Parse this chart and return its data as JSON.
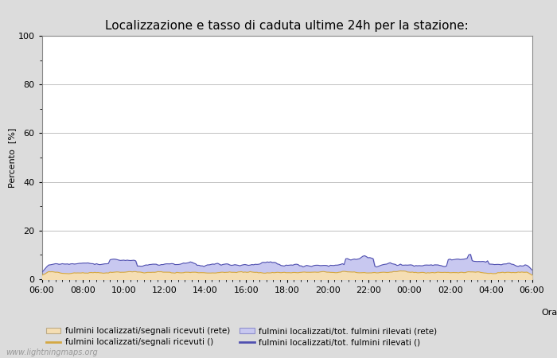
{
  "title": "Localizzazione e tasso di caduta ultime 24h per la stazione:",
  "ylabel": "Percento  [%]",
  "xlabel": "Orario",
  "ylim": [
    0,
    100
  ],
  "yticks": [
    0,
    20,
    40,
    60,
    80,
    100
  ],
  "yticks_minor": [
    10,
    30,
    50,
    70,
    90
  ],
  "x_labels": [
    "06:00",
    "08:00",
    "10:00",
    "12:00",
    "14:00",
    "16:00",
    "18:00",
    "20:00",
    "22:00",
    "00:00",
    "02:00",
    "04:00",
    "06:00"
  ],
  "area1_color": "#f5deb3",
  "area2_color": "#c8c8f0",
  "line1_color": "#d4a843",
  "line2_color": "#5050b0",
  "background_color": "#dcdcdc",
  "plot_bg_color": "#ffffff",
  "grid_color": "#c0c0c0",
  "legend_labels": [
    "fulmini localizzati/segnali ricevuti (rete)",
    "fulmini localizzati/segnali ricevuti ()",
    "fulmini localizzati/tot. fulmini rilevati (rete)",
    "fulmini localizzati/tot. fulmini rilevati ()"
  ],
  "watermark": "www.lightningmaps.org",
  "title_fontsize": 11,
  "label_fontsize": 8,
  "tick_fontsize": 8,
  "legend_fontsize": 7.5
}
